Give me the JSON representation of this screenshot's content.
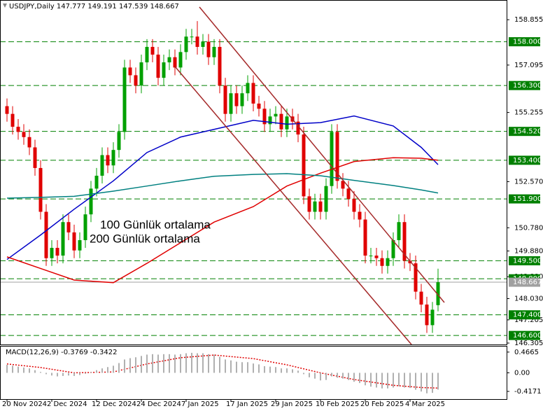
{
  "chart_data": {
    "type": "candlestick",
    "title": "USDJPY,Daily  147.777 149.191 147.539 148.667",
    "categories": [
      "20 Nov 2024",
      null,
      null,
      null,
      null,
      null,
      null,
      null,
      "2 Dec 2024",
      null,
      null,
      null,
      null,
      null,
      null,
      null,
      "12 Dec 2024",
      null,
      null,
      null,
      null,
      null,
      null,
      null,
      "24 Dec 2024",
      null,
      null,
      null,
      null,
      null,
      null,
      null,
      "7 Jan 2025",
      null,
      null,
      null,
      null,
      null,
      null,
      null,
      "17 Jan 2025",
      null,
      null,
      null,
      null,
      null,
      null,
      null,
      "29 Jan 2025",
      null,
      null,
      null,
      null,
      null,
      null,
      null,
      "10 Feb 2025",
      null,
      null,
      null,
      null,
      null,
      null,
      null,
      "20 Feb 2025",
      null,
      null,
      null,
      null,
      null,
      null,
      null,
      "4 Mar 2025",
      null,
      null,
      null,
      null,
      null
    ],
    "open": [
      155.5,
      155.2,
      154.7,
      154.5,
      154.3,
      153.9,
      153.1,
      151.4,
      149.6,
      150.0,
      149.7,
      151.0,
      150.6,
      149.9,
      150.3,
      151.3,
      152.3,
      152.8,
      153.6,
      153.2,
      153.8,
      154.5,
      157.0,
      156.7,
      156.3,
      157.2,
      157.8,
      157.5,
      156.6,
      157.2,
      157.4,
      157.0,
      157.6,
      158.2,
      158.2,
      157.8,
      158.0,
      157.4,
      157.8,
      156.3,
      155.2,
      156.0,
      155.5,
      156.0,
      156.4,
      155.6,
      155.4,
      154.8,
      155.1,
      155.2,
      154.6,
      155.1,
      154.9,
      154.4,
      152.0,
      151.4,
      151.8,
      151.4,
      152.4,
      154.5,
      152.6,
      152.3,
      151.9,
      151.4,
      151.1,
      149.7,
      149.7,
      149.6,
      149.3,
      149.6,
      150.3,
      151.0,
      149.5,
      149.4,
      148.3,
      147.8,
      147.0,
      147.777
    ],
    "high": [
      155.8,
      155.5,
      155.0,
      154.8,
      154.6,
      154.2,
      153.4,
      151.7,
      150.3,
      150.3,
      151.3,
      151.3,
      150.9,
      150.6,
      151.6,
      152.6,
      153.1,
      153.9,
      153.9,
      154.1,
      154.8,
      157.3,
      157.3,
      157.0,
      157.5,
      158.1,
      158.1,
      157.8,
      157.5,
      157.7,
      157.7,
      157.9,
      158.5,
      158.5,
      158.8,
      158.3,
      158.3,
      158.1,
      158.1,
      156.6,
      156.3,
      156.3,
      156.3,
      156.7,
      156.7,
      155.9,
      155.7,
      155.4,
      155.5,
      155.5,
      155.4,
      155.4,
      155.2,
      154.7,
      152.3,
      152.1,
      152.1,
      152.7,
      154.8,
      154.8,
      152.9,
      152.6,
      152.2,
      151.7,
      151.4,
      150.0,
      150.0,
      149.9,
      149.9,
      150.6,
      151.3,
      151.3,
      149.8,
      149.7,
      148.6,
      148.1,
      147.9,
      149.191
    ],
    "low": [
      154.9,
      154.4,
      154.2,
      154.0,
      153.6,
      152.8,
      151.1,
      149.3,
      149.3,
      149.4,
      149.4,
      150.3,
      149.6,
      149.6,
      150.0,
      151.0,
      152.0,
      152.5,
      152.9,
      152.9,
      153.5,
      154.2,
      156.4,
      156.0,
      156.0,
      156.9,
      157.2,
      156.3,
      156.3,
      156.9,
      156.7,
      156.7,
      157.3,
      157.9,
      157.5,
      157.5,
      157.1,
      157.1,
      156.0,
      154.9,
      154.9,
      155.2,
      155.2,
      155.7,
      155.3,
      155.1,
      154.5,
      154.5,
      154.8,
      154.3,
      154.3,
      154.6,
      154.1,
      151.7,
      151.1,
      151.1,
      151.1,
      151.1,
      152.1,
      152.3,
      152.0,
      151.6,
      151.1,
      150.8,
      149.4,
      149.4,
      149.3,
      149.0,
      149.0,
      149.3,
      150.0,
      149.2,
      149.1,
      148.0,
      147.5,
      146.7,
      146.7,
      147.539
    ],
    "close": [
      155.2,
      154.7,
      154.5,
      154.3,
      153.9,
      153.1,
      151.4,
      149.6,
      150.0,
      149.7,
      151.0,
      150.6,
      149.9,
      150.3,
      151.3,
      152.3,
      152.8,
      153.6,
      153.2,
      153.8,
      154.5,
      157.0,
      156.7,
      156.3,
      157.2,
      157.8,
      157.5,
      156.6,
      157.2,
      157.4,
      157.0,
      157.6,
      158.2,
      158.2,
      157.8,
      158.0,
      157.4,
      157.8,
      156.3,
      155.2,
      156.0,
      155.5,
      156.0,
      156.4,
      155.6,
      155.4,
      154.8,
      155.1,
      155.2,
      154.6,
      155.1,
      154.9,
      154.4,
      152.0,
      151.4,
      151.8,
      151.4,
      152.4,
      154.5,
      152.6,
      152.3,
      151.9,
      151.4,
      151.1,
      149.7,
      149.7,
      149.6,
      149.3,
      149.6,
      150.3,
      151.0,
      149.5,
      149.4,
      148.3,
      147.8,
      147.0,
      147.6,
      148.667
    ],
    "up_color": "#00a000",
    "down_color": "#e00000",
    "series": [
      {
        "color": "#0000c8",
        "x": [
          0,
          6,
          12,
          19,
          25,
          31,
          37,
          44,
          50,
          56,
          62,
          69,
          74,
          77
        ],
        "values": [
          149.55,
          150.5,
          151.5,
          152.6,
          153.7,
          154.3,
          154.6,
          154.95,
          154.8,
          154.86,
          155.12,
          154.73,
          153.9,
          153.23
        ]
      },
      {
        "name": "100 Günlük ortalama",
        "color": "#e00000",
        "x": [
          0,
          6,
          12,
          19,
          25,
          31,
          37,
          44,
          50,
          56,
          62,
          69,
          74,
          77
        ],
        "values": [
          149.65,
          149.2,
          148.75,
          148.65,
          149.4,
          150.2,
          151.0,
          151.6,
          152.4,
          152.9,
          153.35,
          153.5,
          153.48,
          153.4
        ]
      },
      {
        "name": "200 Günlük ortalama",
        "color": "#008080",
        "x": [
          0,
          6,
          12,
          19,
          25,
          31,
          37,
          44,
          50,
          56,
          62,
          69,
          74,
          77
        ],
        "values": [
          151.93,
          151.96,
          152.0,
          152.2,
          152.4,
          152.6,
          152.78,
          152.85,
          152.88,
          152.8,
          152.62,
          152.42,
          152.25,
          152.13
        ]
      }
    ],
    "ylim": [
      146.25,
      159.62
    ],
    "yticks": [
      158.855,
      157.095,
      155.255,
      {
        "value": 152.57,
        "label": "152.570"
      },
      {
        "value": 150.78,
        "label": "150.780"
      },
      {
        "value": 149.88,
        "label": "149.880"
      },
      {
        "value": 148.88,
        "label": "148.880"
      },
      {
        "value": 148.03,
        "label": "148.030"
      },
      147.205,
      146.305
    ],
    "levels": [
      {
        "value": 158,
        "label": "158.000"
      },
      {
        "value": 156.3,
        "label": "156.300"
      },
      {
        "value": 154.52,
        "label": "154.520"
      },
      {
        "value": 153.4,
        "label": "153.400"
      },
      {
        "value": 151.9,
        "label": "151.900"
      },
      {
        "value": 149.5,
        "label": "149.500"
      },
      {
        "value": 148.8,
        "label": "148.800"
      },
      {
        "value": 147.4,
        "label": "147.400"
      },
      {
        "value": 146.6,
        "label": "146.600"
      }
    ],
    "level_color": "#008000",
    "macd": {
      "label": "MACD(12,26,9) -0.3769 -0.3422",
      "histogram": [
        0.18,
        0.16,
        0.14,
        0.12,
        0.1,
        0.06,
        0.02,
        -0.03,
        -0.06,
        -0.08,
        -0.07,
        -0.06,
        -0.07,
        -0.05,
        -0.02,
        0.02,
        0.06,
        0.1,
        0.13,
        0.16,
        0.22,
        0.3,
        0.33,
        0.35,
        0.38,
        0.41,
        0.42,
        0.41,
        0.42,
        0.42,
        0.41,
        0.42,
        0.44,
        0.45,
        0.44,
        0.44,
        0.42,
        0.41,
        0.36,
        0.3,
        0.28,
        0.25,
        0.24,
        0.24,
        0.21,
        0.19,
        0.15,
        0.14,
        0.13,
        0.1,
        0.1,
        0.08,
        0.05,
        -0.03,
        -0.1,
        -0.13,
        -0.17,
        -0.16,
        -0.08,
        -0.11,
        -0.13,
        -0.16,
        -0.2,
        -0.23,
        -0.28,
        -0.31,
        -0.33,
        -0.35,
        -0.35,
        -0.33,
        -0.3,
        -0.33,
        -0.34,
        -0.38,
        -0.42,
        -0.46,
        -0.45,
        -0.3769
      ],
      "histogram_color": "#b0b0b0",
      "signal_x": [
        0,
        6,
        12,
        19,
        25,
        31,
        37,
        44,
        50,
        56,
        62,
        69,
        74,
        77
      ],
      "signal": [
        0.2,
        0.12,
        0.0,
        0.02,
        0.2,
        0.34,
        0.4,
        0.32,
        0.18,
        0.0,
        -0.15,
        -0.28,
        -0.33,
        -0.3422
      ],
      "signal_color": "#e00000",
      "ylim": [
        -0.59,
        0.59
      ],
      "yticks": [
        0.4665,
        {
          "value": 0,
          "label": "0.00"
        },
        -0.4171
      ]
    }
  }
}
